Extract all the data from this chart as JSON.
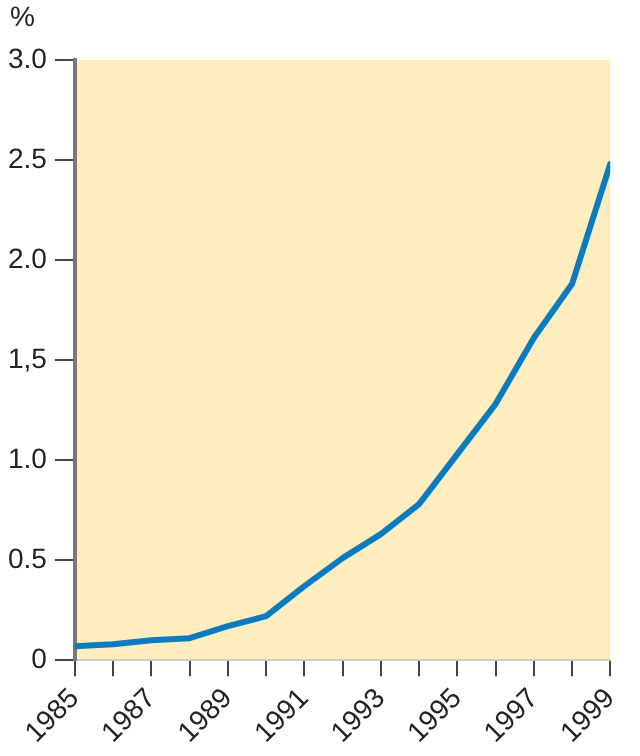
{
  "chart_data": {
    "type": "line",
    "ylabel": "%",
    "x": [
      1985,
      1986,
      1987,
      1988,
      1989,
      1990,
      1991,
      1992,
      1993,
      1994,
      1995,
      1996,
      1997,
      1998,
      1999
    ],
    "series": [
      {
        "color": "#0a7bbf",
        "values": [
          0.07,
          0.08,
          0.1,
          0.11,
          0.17,
          0.22,
          0.37,
          0.51,
          0.63,
          0.78,
          1.03,
          1.28,
          1.61,
          1.88,
          2.48
        ]
      }
    ],
    "xlim": [
      1985,
      1999
    ],
    "xticks": [
      1985,
      {
        "value": 1986,
        "label": null
      },
      1987,
      {
        "value": 1988,
        "label": null
      },
      1989,
      {
        "value": 1990,
        "label": null
      },
      1991,
      {
        "value": 1992,
        "label": null
      },
      1993,
      {
        "value": 1994,
        "label": null
      },
      1995,
      {
        "value": 1996,
        "label": null
      },
      1997,
      {
        "value": 1998,
        "label": null
      },
      1999
    ],
    "ylim": [
      0,
      3
    ],
    "yticks": [
      0,
      0.5,
      {
        "value": 1,
        "label": "1.0"
      },
      {
        "value": 1.5,
        "label": "1,5"
      },
      {
        "value": 2,
        "label": "2.0"
      },
      2.5,
      {
        "value": 3,
        "label": "3.0"
      }
    ],
    "grid": false,
    "legend": false,
    "marker": "none",
    "line_style": "solid"
  }
}
